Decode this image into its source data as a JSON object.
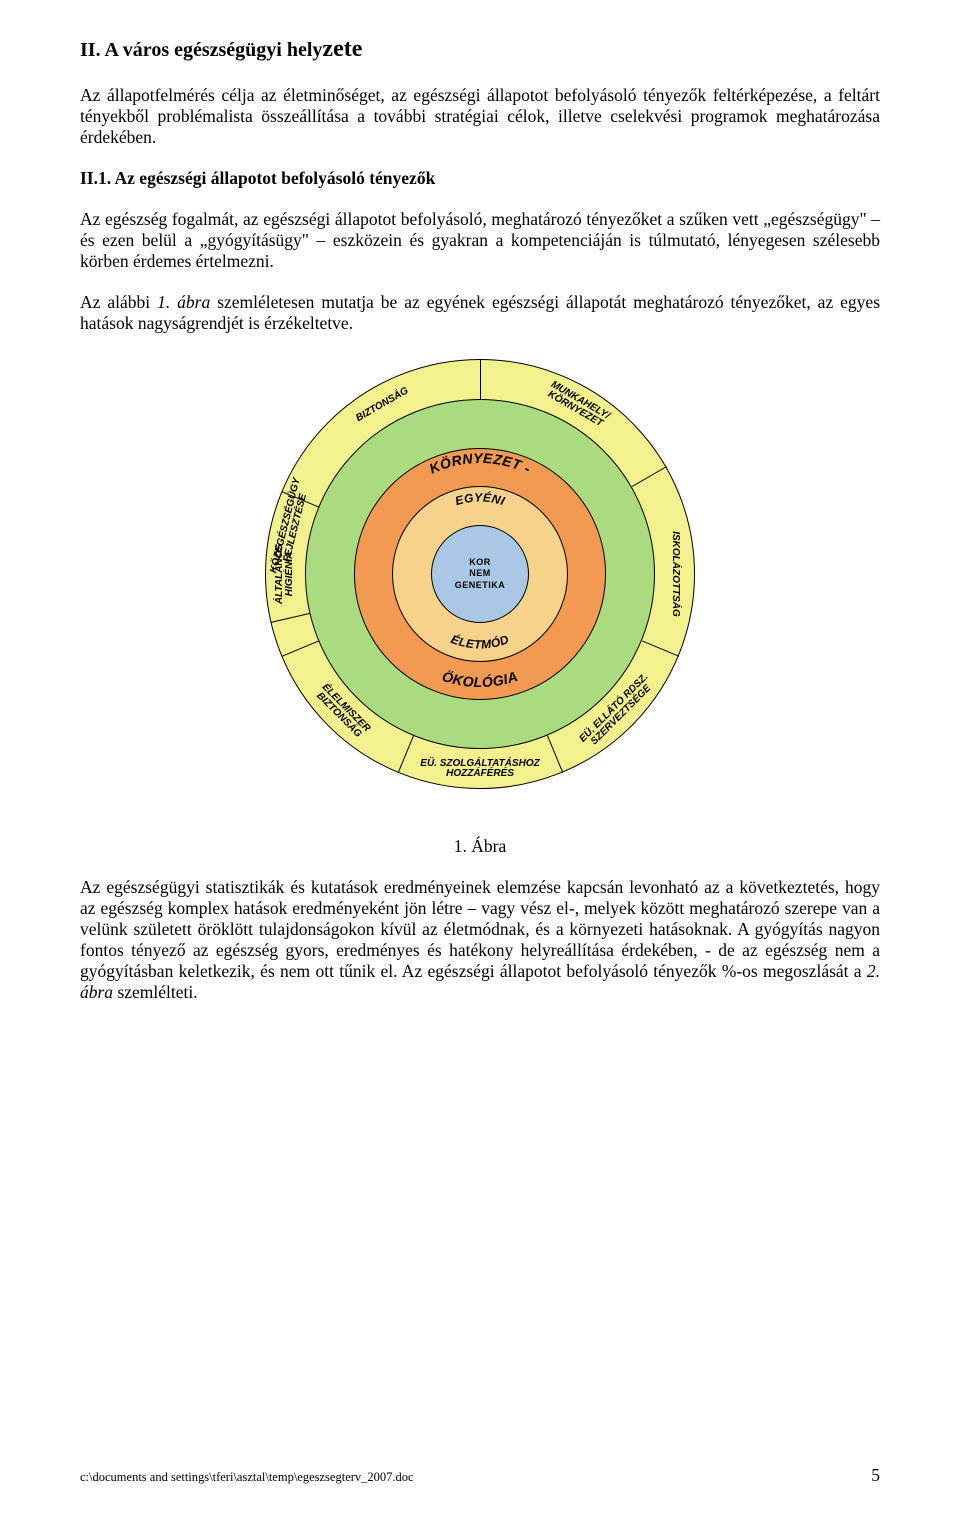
{
  "title_prefix": "II. A város egészségügyi hely",
  "title_suffix": "zete",
  "para1": "Az állapotfelmérés célja az életminőséget, az egészségi állapotot befolyásoló tényezők feltérképezése, a feltárt tényekből problémalista összeállítása a további stratégiai célok, illetve cselekvési programok meghatározása érdekében.",
  "subhead": "II.1. Az egészségi állapotot befolyásoló tényezők",
  "para2": "Az egészség fogalmát, az egészségi állapotot befolyásoló, meghatározó tényezőket a szűken vett „egészségügy\" – és ezen belül a „gyógyításügy\" – eszközein és gyakran a kompetenciáján is túlmutató, lényegesen szélesebb körben érdemes értelmezni.",
  "para3_pre": "Az alábbi ",
  "para3_it": "1. ábra",
  "para3_post": " szemléletesen mutatja be az egyének egészségi állapotát meghatározó tényezőket, az egyes hatások nagyságrendjét is érzékeltetve.",
  "caption": "1. Ábra",
  "para4_pre": "Az egészségügyi statisztikák és kutatások eredményeinek elemzése kapcsán levonható az a következtetés, hogy az egészség komplex hatások eredményeként jön létre – vagy vész el-, melyek között meghatározó szerepe van a velünk született öröklött tulajdonságokon kívül az életmódnak, és a környezeti hatásoknak. A gyógyítás nagyon fontos tényező az egészség gyors, eredményes és hatékony helyreállítása érdekében, - de az egészség nem a gyógyításban keletkezik, és nem ott tűnik el. Az egészségi állapotot befolyásoló tényezők %-os megoszlását a ",
  "para4_it": "2. ábra",
  "para4_post": " szemlélteti.",
  "footer_path": "c:\\documents and settings\\tferi\\asztal\\temp\\egeszsegterv_2007.doc",
  "page_number": "5",
  "diagram": {
    "colors": {
      "outer_ring": "#f3f18d",
      "ring4": "#aadb7f",
      "ring3": "#f39a52",
      "ring2": "#f6d28a",
      "core": "#a9c8e6",
      "stroke": "#000000"
    },
    "radii": {
      "outer": 215,
      "r4": 175,
      "r3": 126,
      "r2": 88,
      "r1": 49
    },
    "core_lines": [
      "KOR",
      "NEM",
      "GENETIKA"
    ],
    "ring2_top": "EGYÉNI",
    "ring2_bottom": "ÉLETMÓD",
    "ring3_top": "KÖRNYEZET",
    "ring3_bottom": "ÖKOLÓGIA",
    "outer_segments": [
      {
        "angle_deg": -120,
        "text": "BIZTONSÁG"
      },
      {
        "angle_deg": -60,
        "text": "MUNKAHELY/\nKÖRNYEZET"
      },
      {
        "angle_deg": 0,
        "text": "ISKOLÁZOTTSÁG"
      },
      {
        "angle_deg": 45,
        "text": "EÜ. ELLÁTÓ RDSZ.\nSZERVEZTSÉGE"
      },
      {
        "angle_deg": 90,
        "text": "EÜ. SZOLGÁLTATÁSHOZ\nHOZZÁFÉRÉS"
      },
      {
        "angle_deg": 135,
        "text": "ÉLELMISZER\nBIZTONSÁG"
      },
      {
        "angle_deg": 180,
        "text": "ÁLTALÁNOS\nHIGIÉNIA"
      },
      {
        "angle_deg": -166,
        "text": "KÖZEGÉSZSÉGÜGY\nFEJLESZTÉSE"
      }
    ],
    "divider_angles_deg": [
      -90,
      -30,
      22.5,
      67.5,
      112.5,
      157.5,
      -157.5,
      -193
    ],
    "label_fontsize_outer": 10,
    "label_fontsize_ring3": 14,
    "label_fontsize_ring2": 12
  }
}
